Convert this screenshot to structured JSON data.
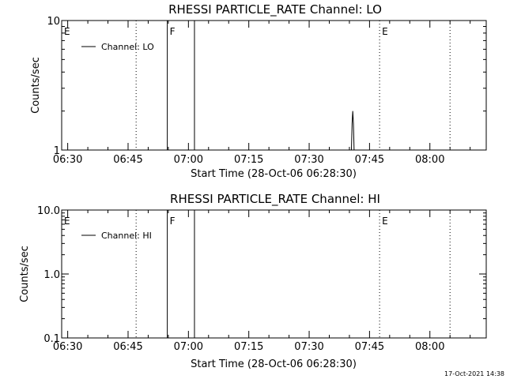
{
  "chart_data": [
    {
      "type": "line",
      "title": "RHESSI PARTICLE_RATE Channel: LO",
      "xlabel": "Start Time (28-Oct-06 06:28:30)",
      "ylabel": "Counts/sec",
      "yscale": "log",
      "ylim": [
        1,
        10
      ],
      "xlim_minutes_after_0628_30": [
        0,
        105.5
      ],
      "ytick_labels": [
        "1",
        "10"
      ],
      "xtick_labels": [
        "06:30",
        "06:45",
        "07:00",
        "07:15",
        "07:30",
        "07:45",
        "08:00"
      ],
      "legend": {
        "position": "top-left",
        "entries": [
          "Channel: LO"
        ]
      },
      "markers": [
        {
          "label": "E",
          "time": "06:28:30",
          "style": "dotted"
        },
        {
          "label": "",
          "time": "06:47:00",
          "style": "dotted"
        },
        {
          "label": "F",
          "time": "06:54:45",
          "style": "solid"
        },
        {
          "label": "",
          "time": "07:01:30",
          "style": "solid"
        },
        {
          "label": "E",
          "time": "07:47:30",
          "style": "dotted"
        },
        {
          "label": "",
          "time": "08:05:00",
          "style": "dotted"
        }
      ],
      "series": [
        {
          "name": "Channel: LO",
          "points": [
            {
              "time": "07:40:30",
              "value": 1
            },
            {
              "time": "07:40:40",
              "value": 1.6
            },
            {
              "time": "07:40:50",
              "value": 2.0
            },
            {
              "time": "07:41:00",
              "value": 1.6
            },
            {
              "time": "07:41:10",
              "value": 1
            }
          ]
        }
      ]
    },
    {
      "type": "line",
      "title": "RHESSI PARTICLE_RATE Channel: HI",
      "xlabel": "Start Time (28-Oct-06 06:28:30)",
      "ylabel": "Counts/sec",
      "yscale": "log",
      "ylim": [
        0.1,
        10
      ],
      "xlim_minutes_after_0628_30": [
        0,
        105.5
      ],
      "ytick_labels": [
        "0.1",
        "1.0",
        "10.0"
      ],
      "xtick_labels": [
        "06:30",
        "06:45",
        "07:00",
        "07:15",
        "07:30",
        "07:45",
        "08:00"
      ],
      "legend": {
        "position": "top-left",
        "entries": [
          "Channel: HI"
        ]
      },
      "markers": [
        {
          "label": "E",
          "time": "06:28:30",
          "style": "dotted"
        },
        {
          "label": "",
          "time": "06:47:00",
          "style": "dotted"
        },
        {
          "label": "F",
          "time": "06:54:45",
          "style": "solid"
        },
        {
          "label": "",
          "time": "07:01:30",
          "style": "solid"
        },
        {
          "label": "E",
          "time": "07:47:30",
          "style": "dotted"
        },
        {
          "label": "",
          "time": "08:05:00",
          "style": "dotted"
        }
      ],
      "series": [
        {
          "name": "Channel: HI",
          "points": []
        }
      ]
    }
  ],
  "footer": {
    "stamp": "17-Oct-2021 14:38"
  },
  "colors": {
    "background": "#ffffff",
    "foreground": "#000000"
  }
}
